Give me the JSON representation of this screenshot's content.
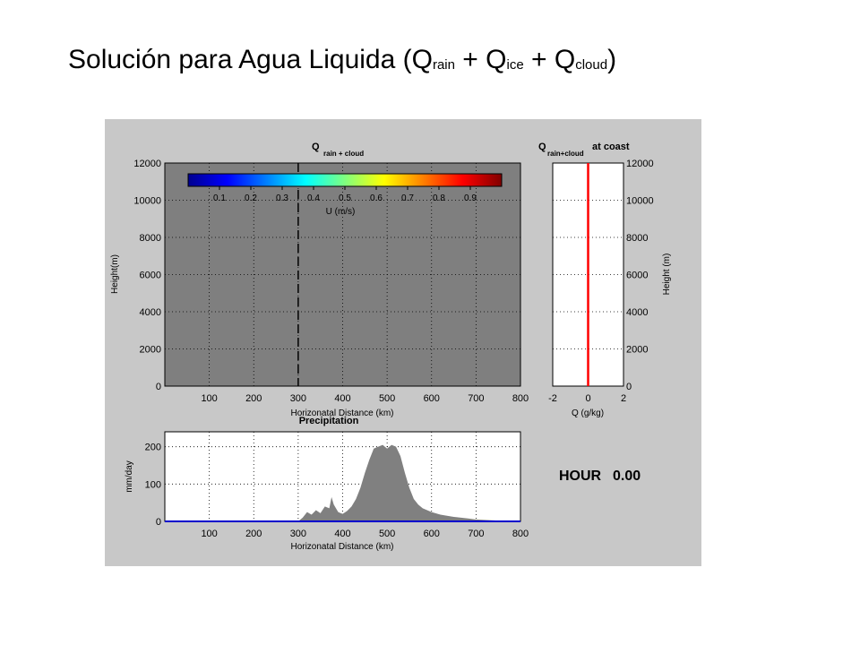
{
  "slide": {
    "title_main": "Solución para Agua Liquida (Q",
    "sub_rain": "rain",
    "plus1": " + Q",
    "sub_ice": "ice",
    "plus2": " + Q",
    "sub_cloud": "cloud",
    "close": ")"
  },
  "hour": {
    "label": "HOUR",
    "value": "0.00"
  },
  "colors": {
    "field": "#7f7f7f",
    "precip_fill": "#808080",
    "profile_line": "#ff0000",
    "baseline": "#0000cc",
    "figure_bg": "#c8c8c8"
  },
  "chart_data": [
    {
      "id": "main",
      "type": "heatmap",
      "title_main": "Q",
      "title_sub": "rain + cloud",
      "xlabel": "Horizonatal Distance (km)",
      "ylabel": "Height(m)",
      "xlim": [
        0,
        800
      ],
      "ylim": [
        0,
        12000
      ],
      "xticks": [
        100,
        200,
        300,
        400,
        500,
        600,
        700,
        800
      ],
      "yticks": [
        0,
        2000,
        4000,
        6000,
        8000,
        10000,
        12000
      ],
      "grid": true,
      "coast_line_x": 300,
      "colorbar": {
        "label": "U (m/s)",
        "range": [
          0,
          1
        ],
        "ticks": [
          "0.1",
          "0.2",
          "0.3",
          "0.4",
          "0.5",
          "0.6",
          "0.7",
          "0.8",
          "0.9"
        ]
      }
    },
    {
      "id": "coast",
      "type": "line",
      "title_main": "Q",
      "title_sub": "rain+cloud",
      "title_suffix": "at coast",
      "xlabel": "Q (g/kg)",
      "ylabel": "Height (m)",
      "xlim": [
        -2,
        2
      ],
      "ylim": [
        0,
        12000
      ],
      "xticks": [
        -2,
        0,
        2
      ],
      "yticks": [
        0,
        2000,
        4000,
        6000,
        8000,
        10000,
        12000
      ],
      "grid": true,
      "x": [
        0,
        0
      ],
      "y": [
        0,
        12000
      ]
    },
    {
      "id": "precip",
      "type": "area",
      "title": "Precipitation",
      "xlabel": "Horizonatal Distance (km)",
      "ylabel": "mm/day",
      "xlim": [
        0,
        800
      ],
      "ylim": [
        0,
        240
      ],
      "xticks": [
        100,
        200,
        300,
        400,
        500,
        600,
        700,
        800
      ],
      "yticks": [
        0,
        100,
        200
      ],
      "grid": true,
      "x": [
        300,
        310,
        320,
        330,
        340,
        350,
        360,
        370,
        375,
        380,
        390,
        400,
        410,
        420,
        430,
        440,
        450,
        460,
        470,
        480,
        490,
        500,
        510,
        520,
        530,
        540,
        550,
        560,
        570,
        580,
        600,
        620,
        650,
        680,
        700,
        750,
        800
      ],
      "values": [
        0,
        10,
        25,
        18,
        30,
        22,
        40,
        35,
        65,
        45,
        25,
        20,
        28,
        40,
        60,
        90,
        130,
        165,
        195,
        200,
        205,
        195,
        205,
        200,
        175,
        130,
        90,
        60,
        45,
        35,
        25,
        18,
        12,
        8,
        5,
        2,
        0
      ]
    }
  ]
}
